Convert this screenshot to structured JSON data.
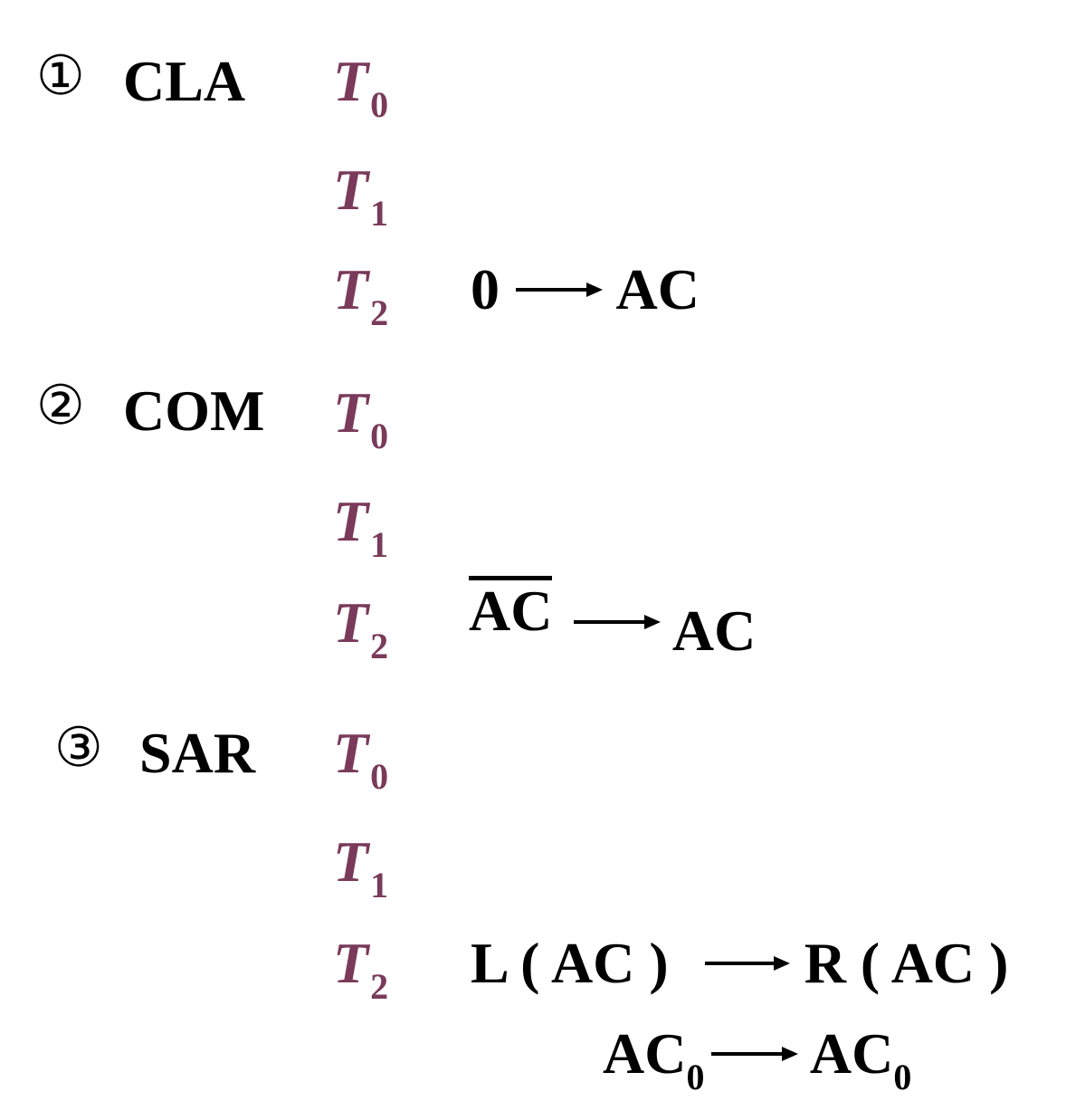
{
  "colors": {
    "text": "#000000",
    "tstate": "#7a3a5a",
    "background": "#ffffff"
  },
  "instructions": [
    {
      "marker": "①",
      "name": "CLA",
      "steps": [
        {
          "t": "T",
          "sub": "0"
        },
        {
          "t": "T",
          "sub": "1"
        },
        {
          "t": "T",
          "sub": "2"
        }
      ],
      "op": {
        "src": "0",
        "dst": "AC"
      }
    },
    {
      "marker": "②",
      "name": "COM",
      "steps": [
        {
          "t": "T",
          "sub": "0"
        },
        {
          "t": "T",
          "sub": "1"
        },
        {
          "t": "T",
          "sub": "2"
        }
      ],
      "op": {
        "src": "AC",
        "dst": "AC"
      }
    },
    {
      "marker": "③",
      "name": "SAR",
      "steps": [
        {
          "t": "T",
          "sub": "0"
        },
        {
          "t": "T",
          "sub": "1"
        },
        {
          "t": "T",
          "sub": "2"
        }
      ],
      "op": {
        "src": "L ( AC )",
        "dst": "R ( AC )"
      },
      "op2": {
        "src": "AC",
        "src_sub": "0",
        "dst": "AC",
        "dst_sub": "0"
      }
    }
  ]
}
